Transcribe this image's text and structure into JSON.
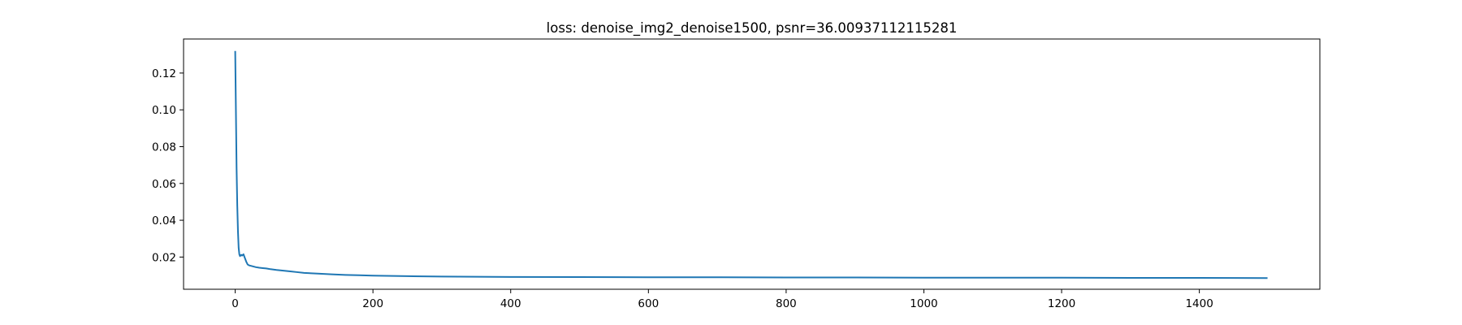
{
  "chart_data": {
    "type": "line",
    "title": "loss: denoise_img2_denoise1500, psnr=36.00937112115281",
    "xlabel": "",
    "ylabel": "",
    "xlim": [
      -75,
      1575
    ],
    "ylim": [
      0.0025,
      0.1385
    ],
    "xticks": [
      0,
      200,
      400,
      600,
      800,
      1000,
      1200,
      1400
    ],
    "xtick_labels": [
      "0",
      "200",
      "400",
      "600",
      "800",
      "1000",
      "1200",
      "1400"
    ],
    "yticks": [
      0.02,
      0.04,
      0.06,
      0.08,
      0.1,
      0.12
    ],
    "ytick_labels": [
      "0.02",
      "0.04",
      "0.06",
      "0.08",
      "0.10",
      "0.12"
    ],
    "grid": false,
    "legend": "none",
    "series": [
      {
        "color": "#1f77b4",
        "x": [
          0,
          1,
          2,
          3,
          4,
          5,
          6,
          7,
          8,
          9,
          10,
          12,
          14,
          16,
          18,
          20,
          25,
          30,
          35,
          40,
          45,
          50,
          60,
          70,
          80,
          90,
          100,
          120,
          140,
          160,
          180,
          200,
          250,
          300,
          350,
          400,
          500,
          600,
          700,
          800,
          900,
          1000,
          1100,
          1200,
          1300,
          1400,
          1499
        ],
        "y": [
          0.132,
          0.1,
          0.068,
          0.048,
          0.034,
          0.025,
          0.0215,
          0.0205,
          0.021,
          0.0212,
          0.0208,
          0.0215,
          0.0195,
          0.0175,
          0.016,
          0.0155,
          0.015,
          0.0145,
          0.0142,
          0.014,
          0.0138,
          0.0135,
          0.013,
          0.0126,
          0.0122,
          0.0118,
          0.0114,
          0.011,
          0.0106,
          0.0103,
          0.0101,
          0.0099,
          0.0096,
          0.0094,
          0.0093,
          0.0092,
          0.0091,
          0.009,
          0.009,
          0.0089,
          0.0089,
          0.0088,
          0.0088,
          0.0088,
          0.0087,
          0.0087,
          0.0086
        ]
      }
    ]
  }
}
